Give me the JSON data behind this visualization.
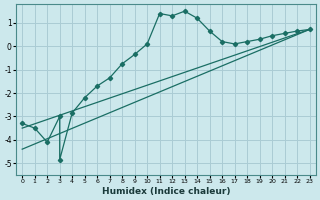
{
  "xlabel": "Humidex (Indice chaleur)",
  "bg_color": "#cce8ec",
  "grid_color": "#aaccd4",
  "line_color": "#1a6e64",
  "xlim": [
    -0.5,
    23.5
  ],
  "ylim": [
    -5.5,
    1.8
  ],
  "xticks": [
    0,
    1,
    2,
    3,
    4,
    5,
    6,
    7,
    8,
    9,
    10,
    11,
    12,
    13,
    14,
    15,
    16,
    17,
    18,
    19,
    20,
    21,
    22,
    23
  ],
  "yticks": [
    -5,
    -4,
    -3,
    -2,
    -1,
    0,
    1
  ],
  "curve1_x": [
    0,
    1,
    2,
    3,
    3,
    4,
    5,
    6,
    7,
    8,
    9,
    10,
    11,
    12,
    13,
    14,
    15,
    16,
    17,
    18,
    19,
    20,
    21,
    22,
    23
  ],
  "curve1_y": [
    -3.3,
    -3.5,
    -4.1,
    -3.0,
    -4.85,
    -2.85,
    -2.2,
    -1.7,
    -1.35,
    -0.75,
    -0.35,
    0.1,
    1.4,
    1.3,
    1.5,
    1.2,
    0.65,
    0.2,
    0.1,
    0.2,
    0.3,
    0.45,
    0.55,
    0.65,
    0.72
  ],
  "line1_x": [
    0,
    23
  ],
  "line1_y": [
    -3.5,
    0.72
  ],
  "line2_x": [
    0,
    23
  ],
  "line2_y": [
    -4.4,
    0.72
  ]
}
